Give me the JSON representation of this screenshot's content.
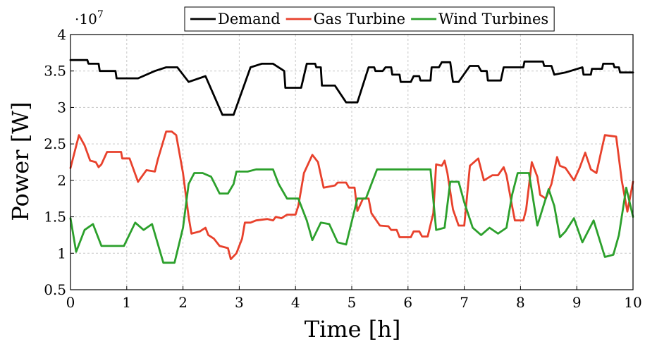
{
  "chart_data": {
    "type": "line",
    "xlabel": "Time [h]",
    "ylabel": "Power [W]",
    "y_multiplier": "·10",
    "y_multiplier_exp": "7",
    "xlim": [
      0,
      10
    ],
    "ylim": [
      0.5,
      4
    ],
    "x_ticks": [
      0,
      1,
      2,
      3,
      4,
      5,
      6,
      7,
      8,
      9,
      10
    ],
    "y_ticks": [
      0.5,
      1,
      1.5,
      2,
      2.5,
      3,
      3.5,
      4
    ],
    "grid": true,
    "legend_position": "top-right",
    "series": [
      {
        "name": "Demand",
        "color": "#000000",
        "points": [
          [
            0,
            3.65
          ],
          [
            0.3,
            3.65
          ],
          [
            0.32,
            3.6
          ],
          [
            0.5,
            3.6
          ],
          [
            0.52,
            3.5
          ],
          [
            0.8,
            3.5
          ],
          [
            0.82,
            3.4
          ],
          [
            1.2,
            3.4
          ],
          [
            1.5,
            3.5
          ],
          [
            1.7,
            3.55
          ],
          [
            1.9,
            3.55
          ],
          [
            2.1,
            3.35
          ],
          [
            2.4,
            3.43
          ],
          [
            2.7,
            2.9
          ],
          [
            2.9,
            2.9
          ],
          [
            3.2,
            3.55
          ],
          [
            3.4,
            3.6
          ],
          [
            3.6,
            3.6
          ],
          [
            3.8,
            3.5
          ],
          [
            3.82,
            3.27
          ],
          [
            4.1,
            3.27
          ],
          [
            4.2,
            3.6
          ],
          [
            4.35,
            3.6
          ],
          [
            4.37,
            3.55
          ],
          [
            4.45,
            3.55
          ],
          [
            4.47,
            3.3
          ],
          [
            4.7,
            3.3
          ],
          [
            4.9,
            3.07
          ],
          [
            5.1,
            3.07
          ],
          [
            5.3,
            3.55
          ],
          [
            5.4,
            3.55
          ],
          [
            5.42,
            3.5
          ],
          [
            5.55,
            3.5
          ],
          [
            5.6,
            3.55
          ],
          [
            5.7,
            3.55
          ],
          [
            5.72,
            3.45
          ],
          [
            5.85,
            3.45
          ],
          [
            5.87,
            3.35
          ],
          [
            6.05,
            3.35
          ],
          [
            6.1,
            3.43
          ],
          [
            6.2,
            3.43
          ],
          [
            6.22,
            3.37
          ],
          [
            6.4,
            3.37
          ],
          [
            6.42,
            3.55
          ],
          [
            6.55,
            3.55
          ],
          [
            6.6,
            3.62
          ],
          [
            6.75,
            3.62
          ],
          [
            6.8,
            3.35
          ],
          [
            6.9,
            3.35
          ],
          [
            7.1,
            3.57
          ],
          [
            7.25,
            3.57
          ],
          [
            7.3,
            3.5
          ],
          [
            7.4,
            3.5
          ],
          [
            7.42,
            3.37
          ],
          [
            7.65,
            3.37
          ],
          [
            7.7,
            3.55
          ],
          [
            8.05,
            3.55
          ],
          [
            8.07,
            3.63
          ],
          [
            8.4,
            3.63
          ],
          [
            8.42,
            3.57
          ],
          [
            8.55,
            3.57
          ],
          [
            8.6,
            3.45
          ],
          [
            8.8,
            3.48
          ],
          [
            9.1,
            3.55
          ],
          [
            9.12,
            3.45
          ],
          [
            9.25,
            3.45
          ],
          [
            9.27,
            3.53
          ],
          [
            9.45,
            3.53
          ],
          [
            9.47,
            3.6
          ],
          [
            9.65,
            3.6
          ],
          [
            9.67,
            3.55
          ],
          [
            9.75,
            3.55
          ],
          [
            9.77,
            3.48
          ],
          [
            10,
            3.48
          ]
        ]
      },
      {
        "name": "Gas Turbine",
        "color": "#e8412c",
        "points": [
          [
            0,
            2.17
          ],
          [
            0.15,
            2.62
          ],
          [
            0.25,
            2.48
          ],
          [
            0.35,
            2.27
          ],
          [
            0.45,
            2.25
          ],
          [
            0.5,
            2.18
          ],
          [
            0.55,
            2.22
          ],
          [
            0.65,
            2.39
          ],
          [
            0.9,
            2.39
          ],
          [
            0.92,
            2.3
          ],
          [
            1.05,
            2.3
          ],
          [
            1.2,
            1.98
          ],
          [
            1.35,
            2.14
          ],
          [
            1.5,
            2.12
          ],
          [
            1.55,
            2.28
          ],
          [
            1.7,
            2.67
          ],
          [
            1.8,
            2.67
          ],
          [
            1.88,
            2.62
          ],
          [
            2.0,
            2.1
          ],
          [
            2.1,
            1.5
          ],
          [
            2.15,
            1.27
          ],
          [
            2.3,
            1.3
          ],
          [
            2.4,
            1.35
          ],
          [
            2.45,
            1.25
          ],
          [
            2.55,
            1.2
          ],
          [
            2.65,
            1.1
          ],
          [
            2.8,
            1.07
          ],
          [
            2.85,
            0.92
          ],
          [
            2.95,
            1.0
          ],
          [
            3.05,
            1.2
          ],
          [
            3.1,
            1.42
          ],
          [
            3.2,
            1.42
          ],
          [
            3.3,
            1.45
          ],
          [
            3.5,
            1.47
          ],
          [
            3.6,
            1.45
          ],
          [
            3.65,
            1.5
          ],
          [
            3.75,
            1.48
          ],
          [
            3.85,
            1.53
          ],
          [
            4.0,
            1.53
          ],
          [
            4.05,
            1.65
          ],
          [
            4.15,
            2.1
          ],
          [
            4.3,
            2.35
          ],
          [
            4.4,
            2.25
          ],
          [
            4.5,
            1.9
          ],
          [
            4.7,
            1.93
          ],
          [
            4.75,
            1.97
          ],
          [
            4.9,
            1.97
          ],
          [
            4.95,
            1.9
          ],
          [
            5.05,
            1.9
          ],
          [
            5.1,
            1.58
          ],
          [
            5.2,
            1.75
          ],
          [
            5.3,
            1.75
          ],
          [
            5.35,
            1.55
          ],
          [
            5.5,
            1.38
          ],
          [
            5.65,
            1.37
          ],
          [
            5.7,
            1.32
          ],
          [
            5.8,
            1.32
          ],
          [
            5.85,
            1.22
          ],
          [
            6.05,
            1.22
          ],
          [
            6.1,
            1.3
          ],
          [
            6.2,
            1.3
          ],
          [
            6.25,
            1.23
          ],
          [
            6.35,
            1.23
          ],
          [
            6.45,
            1.55
          ],
          [
            6.5,
            2.22
          ],
          [
            6.6,
            2.2
          ],
          [
            6.65,
            2.27
          ],
          [
            6.7,
            2.1
          ],
          [
            6.8,
            1.6
          ],
          [
            6.9,
            1.38
          ],
          [
            7.0,
            1.38
          ],
          [
            7.1,
            2.2
          ],
          [
            7.25,
            2.3
          ],
          [
            7.35,
            2.0
          ],
          [
            7.5,
            2.07
          ],
          [
            7.6,
            2.07
          ],
          [
            7.7,
            2.18
          ],
          [
            7.75,
            2.07
          ],
          [
            7.85,
            1.65
          ],
          [
            7.9,
            1.45
          ],
          [
            8.05,
            1.45
          ],
          [
            8.1,
            1.6
          ],
          [
            8.2,
            2.25
          ],
          [
            8.3,
            2.05
          ],
          [
            8.35,
            1.8
          ],
          [
            8.45,
            1.75
          ],
          [
            8.55,
            1.95
          ],
          [
            8.65,
            2.32
          ],
          [
            8.7,
            2.2
          ],
          [
            8.8,
            2.17
          ],
          [
            8.95,
            2.0
          ],
          [
            9.05,
            2.17
          ],
          [
            9.15,
            2.38
          ],
          [
            9.25,
            2.15
          ],
          [
            9.35,
            2.1
          ],
          [
            9.45,
            2.45
          ],
          [
            9.5,
            2.62
          ],
          [
            9.7,
            2.6
          ],
          [
            9.8,
            2.0
          ],
          [
            9.9,
            1.57
          ],
          [
            10,
            1.98
          ]
        ]
      },
      {
        "name": "Wind Turbines",
        "color": "#2ca02c",
        "points": [
          [
            0,
            1.48
          ],
          [
            0.1,
            1.02
          ],
          [
            0.25,
            1.32
          ],
          [
            0.4,
            1.4
          ],
          [
            0.55,
            1.1
          ],
          [
            0.95,
            1.1
          ],
          [
            1.15,
            1.42
          ],
          [
            1.3,
            1.32
          ],
          [
            1.45,
            1.4
          ],
          [
            1.65,
            0.87
          ],
          [
            1.85,
            0.87
          ],
          [
            2.0,
            1.35
          ],
          [
            2.1,
            1.95
          ],
          [
            2.2,
            2.1
          ],
          [
            2.35,
            2.1
          ],
          [
            2.5,
            2.05
          ],
          [
            2.65,
            1.82
          ],
          [
            2.8,
            1.82
          ],
          [
            2.9,
            1.95
          ],
          [
            2.95,
            2.12
          ],
          [
            3.15,
            2.12
          ],
          [
            3.3,
            2.15
          ],
          [
            3.6,
            2.15
          ],
          [
            3.7,
            1.95
          ],
          [
            3.85,
            1.75
          ],
          [
            4.05,
            1.75
          ],
          [
            4.2,
            1.45
          ],
          [
            4.3,
            1.18
          ],
          [
            4.45,
            1.42
          ],
          [
            4.6,
            1.4
          ],
          [
            4.75,
            1.15
          ],
          [
            4.9,
            1.12
          ],
          [
            5.1,
            1.75
          ],
          [
            5.25,
            1.75
          ],
          [
            5.35,
            1.95
          ],
          [
            5.45,
            2.15
          ],
          [
            6.4,
            2.15
          ],
          [
            6.5,
            1.32
          ],
          [
            6.65,
            1.35
          ],
          [
            6.75,
            1.98
          ],
          [
            6.9,
            1.98
          ],
          [
            7.0,
            1.7
          ],
          [
            7.15,
            1.35
          ],
          [
            7.3,
            1.25
          ],
          [
            7.45,
            1.35
          ],
          [
            7.6,
            1.27
          ],
          [
            7.75,
            1.35
          ],
          [
            7.85,
            1.8
          ],
          [
            7.95,
            2.1
          ],
          [
            8.15,
            2.1
          ],
          [
            8.3,
            1.38
          ],
          [
            8.5,
            1.88
          ],
          [
            8.6,
            1.65
          ],
          [
            8.7,
            1.22
          ],
          [
            8.8,
            1.3
          ],
          [
            8.95,
            1.48
          ],
          [
            9.1,
            1.15
          ],
          [
            9.3,
            1.45
          ],
          [
            9.5,
            0.95
          ],
          [
            9.65,
            0.98
          ],
          [
            9.75,
            1.25
          ],
          [
            9.88,
            1.9
          ],
          [
            10,
            1.5
          ]
        ]
      }
    ]
  }
}
